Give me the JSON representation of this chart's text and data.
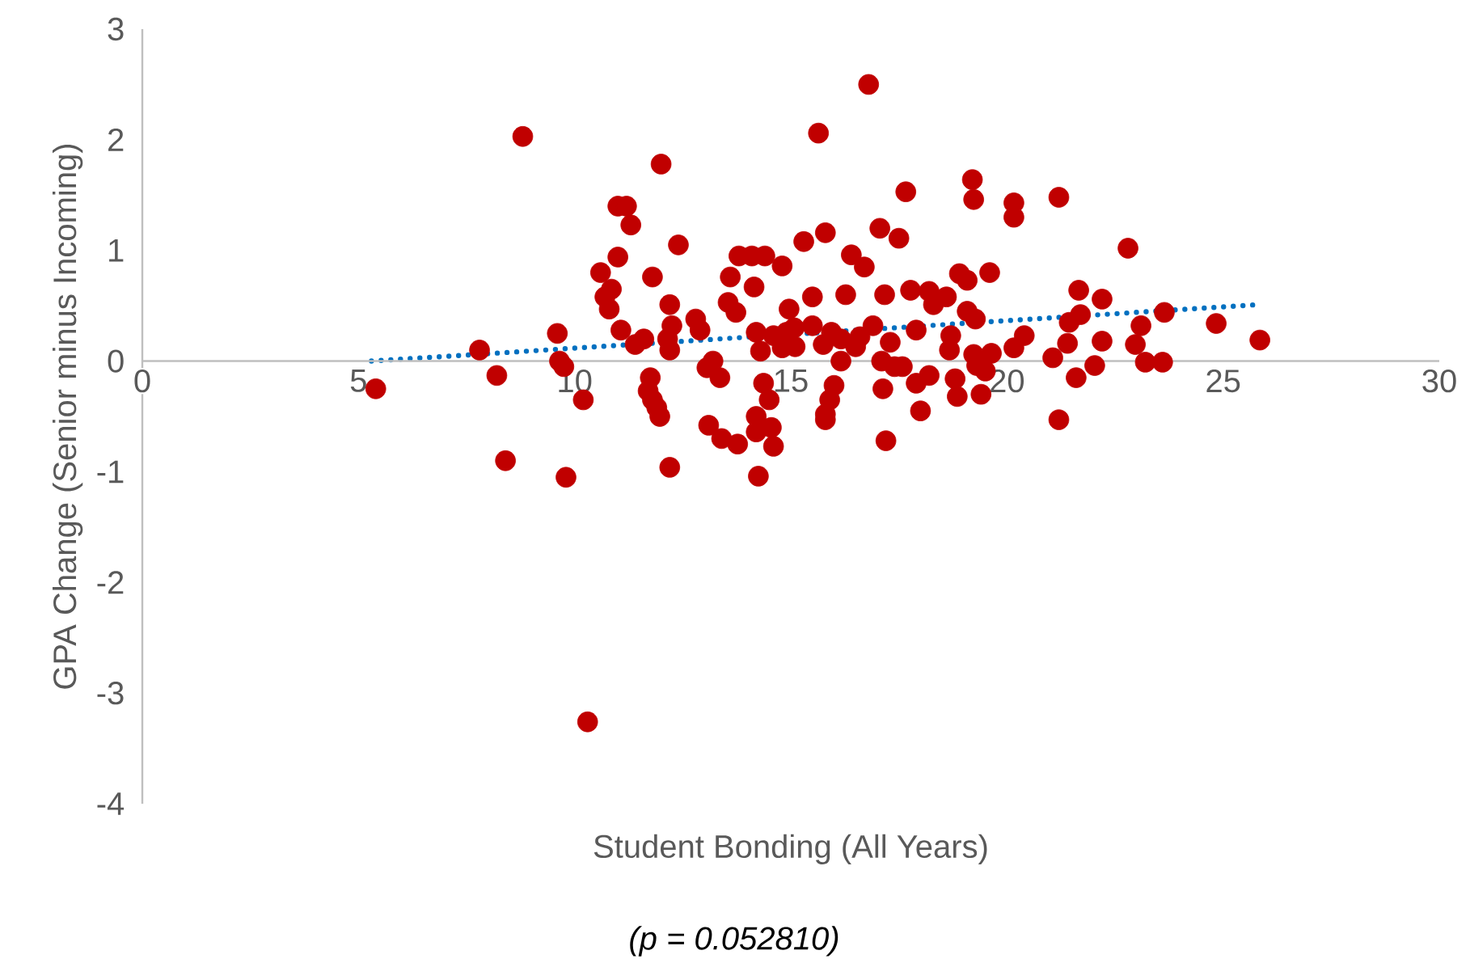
{
  "chart_data": {
    "type": "scatter",
    "xlabel": "Student Bonding (All Years)",
    "ylabel": "GPA Change (Senior minus Incoming)",
    "annotations": [
      "(p = 0.052810)"
    ],
    "xlim": [
      0,
      30
    ],
    "ylim": [
      -4,
      3
    ],
    "xticks": [
      0,
      5,
      10,
      15,
      20,
      25,
      30
    ],
    "yticks": [
      -4,
      -3,
      -2,
      -1,
      0,
      1,
      2,
      3
    ],
    "grid": false,
    "series": [
      {
        "color": "#c00000",
        "marker": "circle",
        "x": [
          5.4,
          7.8,
          8.2,
          8.4,
          8.8,
          9.6,
          9.65,
          9.75,
          9.8,
          10.2,
          10.3,
          10.6,
          10.8,
          10.7,
          10.85,
          11.0,
          11.2,
          11.3,
          11.07,
          11.0,
          11.4,
          11.6,
          11.75,
          11.7,
          11.8,
          11.9,
          11.97,
          11.8,
          12.0,
          12.2,
          12.25,
          12.2,
          12.2,
          12.4,
          12.15,
          12.8,
          12.9,
          13.06,
          13.1,
          13.2,
          13.36,
          13.4,
          13.55,
          13.6,
          13.73,
          13.77,
          13.8,
          14.1,
          14.4,
          14.15,
          14.2,
          14.3,
          14.2,
          14.2,
          14.25,
          14.37,
          14.5,
          14.55,
          14.6,
          14.6,
          14.8,
          14.96,
          14.8,
          14.9,
          15.08,
          15.1,
          15.3,
          15.5,
          15.64,
          15.5,
          15.75,
          15.8,
          15.9,
          16.0,
          15.8,
          15.8,
          15.94,
          16.16,
          16.27,
          16.16,
          16.4,
          16.5,
          16.7,
          16.8,
          16.6,
          16.9,
          17.06,
          17.1,
          17.13,
          17.17,
          17.2,
          17.3,
          17.4,
          17.58,
          17.66,
          17.77,
          17.9,
          18.0,
          17.9,
          18.2,
          18.2,
          18.3,
          18.6,
          18.7,
          18.67,
          18.8,
          18.85,
          18.9,
          19.08,
          19.08,
          19.2,
          19.23,
          19.27,
          19.23,
          19.3,
          19.4,
          19.6,
          19.64,
          19.5,
          20.16,
          20.16,
          20.16,
          20.4,
          21.06,
          21.2,
          21.2,
          21.4,
          21.44,
          21.6,
          21.66,
          21.7,
          22.03,
          22.2,
          22.2,
          22.8,
          22.97,
          23.1,
          23.2,
          23.6,
          23.64,
          24.84,
          25.85,
          17.5
        ],
        "values": [
          -0.25,
          0.1,
          -0.13,
          -0.9,
          2.03,
          0.25,
          0.0,
          -0.05,
          -1.05,
          -0.35,
          -3.26,
          0.8,
          0.47,
          0.58,
          0.65,
          1.4,
          1.4,
          1.23,
          0.28,
          0.94,
          0.15,
          0.2,
          -0.15,
          -0.27,
          -0.35,
          -0.42,
          -0.5,
          0.76,
          1.78,
          0.51,
          0.32,
          0.1,
          -0.96,
          1.05,
          0.2,
          0.38,
          0.28,
          -0.06,
          -0.58,
          0.0,
          -0.15,
          -0.7,
          0.53,
          0.76,
          0.44,
          -0.75,
          0.95,
          0.95,
          0.95,
          0.67,
          0.26,
          0.09,
          -0.5,
          -0.64,
          -1.04,
          -0.2,
          -0.35,
          -0.6,
          -0.77,
          0.23,
          0.86,
          0.47,
          0.12,
          0.26,
          0.3,
          0.13,
          1.08,
          0.58,
          2.06,
          0.32,
          0.15,
          -0.53,
          -0.35,
          -0.22,
          1.16,
          -0.48,
          0.26,
          0.0,
          0.6,
          0.2,
          0.96,
          0.13,
          0.85,
          2.5,
          0.22,
          0.32,
          1.2,
          0.0,
          -0.25,
          0.6,
          -0.72,
          0.17,
          -0.05,
          -0.05,
          1.53,
          0.64,
          0.28,
          -0.45,
          -0.2,
          0.63,
          -0.13,
          0.51,
          0.58,
          0.23,
          0.1,
          -0.16,
          -0.32,
          0.79,
          0.73,
          0.45,
          1.64,
          1.46,
          0.38,
          0.06,
          -0.04,
          -0.3,
          0.8,
          0.07,
          -0.09,
          1.43,
          1.3,
          0.12,
          0.23,
          0.03,
          1.48,
          -0.53,
          0.16,
          0.35,
          -0.15,
          0.64,
          0.42,
          -0.04,
          0.56,
          0.18,
          1.02,
          0.15,
          0.32,
          -0.01,
          -0.01,
          0.44,
          0.34,
          0.19,
          1.11
        ]
      },
      {
        "type": "line",
        "line_style": "dotted",
        "marker": "none",
        "color": "#0070c0",
        "x": [
          5.3,
          25.8
        ],
        "values": [
          0.0,
          0.51
        ]
      }
    ]
  }
}
